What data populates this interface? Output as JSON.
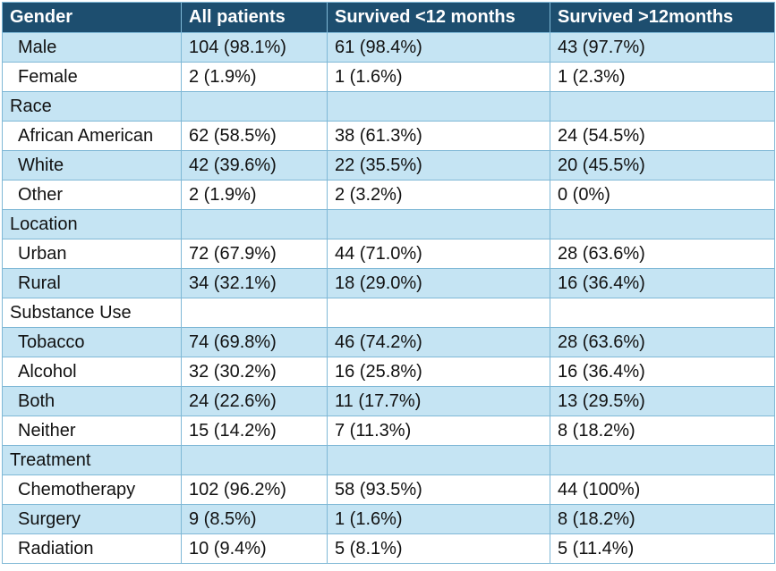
{
  "header": [
    "Gender",
    "All patients",
    "Survived <12 months",
    "Survived >12months"
  ],
  "rows": [
    {
      "kind": "item",
      "label": "Male",
      "all": "104 (98.1%)",
      "lt12": "61 (98.4%)",
      "gt12": "43 (97.7%)"
    },
    {
      "kind": "item",
      "label": "Female",
      "all": "2 (1.9%)",
      "lt12": "1 (1.6%)",
      "gt12": "1 (2.3%)"
    },
    {
      "kind": "category",
      "label": "Race"
    },
    {
      "kind": "item",
      "label": "African American",
      "all": "62 (58.5%)",
      "lt12": "38 (61.3%)",
      "gt12": "24 (54.5%)"
    },
    {
      "kind": "item",
      "label": "White",
      "all": "42 (39.6%)",
      "lt12": "22 (35.5%)",
      "gt12": "20 (45.5%)"
    },
    {
      "kind": "item",
      "label": "Other",
      "all": "2 (1.9%)",
      "lt12": "2 (3.2%)",
      "gt12": "0 (0%)"
    },
    {
      "kind": "category",
      "label": "Location"
    },
    {
      "kind": "item",
      "label": "Urban",
      "all": "72 (67.9%)",
      "lt12": "44 (71.0%)",
      "gt12": "28 (63.6%)"
    },
    {
      "kind": "item",
      "label": "Rural",
      "all": "34 (32.1%)",
      "lt12": "18 (29.0%)",
      "gt12": "16 (36.4%)"
    },
    {
      "kind": "category",
      "label": "Substance Use"
    },
    {
      "kind": "item",
      "label": "Tobacco",
      "all": "74 (69.8%)",
      "lt12": "46 (74.2%)",
      "gt12": "28 (63.6%)"
    },
    {
      "kind": "item",
      "label": "Alcohol",
      "all": "32 (30.2%)",
      "lt12": "16 (25.8%)",
      "gt12": "16 (36.4%)"
    },
    {
      "kind": "item",
      "label": "Both",
      "all": "24 (22.6%)",
      "lt12": "11 (17.7%)",
      "gt12": "13 (29.5%)"
    },
    {
      "kind": "item",
      "label": "Neither",
      "all": "15 (14.2%)",
      "lt12": "7 (11.3%)",
      "gt12": "8 (18.2%)"
    },
    {
      "kind": "category",
      "label": "Treatment"
    },
    {
      "kind": "item",
      "label": "Chemotherapy",
      "all": "102 (96.2%)",
      "lt12": "58 (93.5%)",
      "gt12": "44 (100%)"
    },
    {
      "kind": "item",
      "label": "Surgery",
      "all": "9 (8.5%)",
      "lt12": "1 (1.6%)",
      "gt12": "8 (18.2%)"
    },
    {
      "kind": "item",
      "label": "Radiation",
      "all": "10 (9.4%)",
      "lt12": "5 (8.1%)",
      "gt12": "5 (11.4%)"
    }
  ]
}
